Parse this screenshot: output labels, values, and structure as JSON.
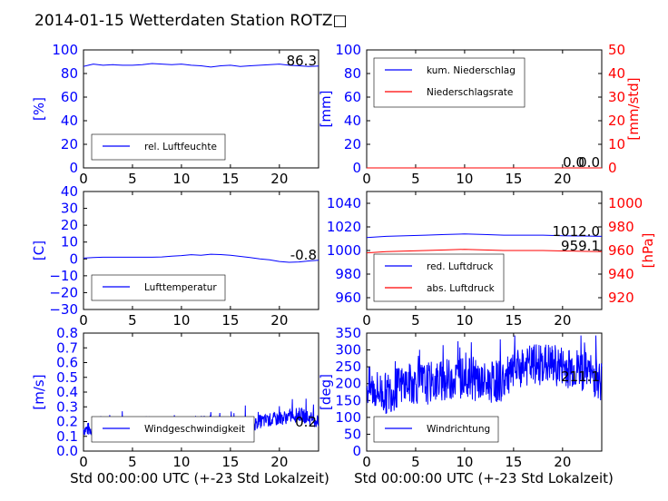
{
  "title": "2014-01-15 Wetterdaten Station ROTZ□",
  "xlabel": "Std 00:00:00 UTC (+-23 Std Lokalzeit)",
  "x_ticks": [
    "0",
    "5",
    "10",
    "15",
    "20"
  ],
  "colors": {
    "primary": "#0000ff",
    "secondary": "#ff0000"
  },
  "chart_data": [
    {
      "type": "line",
      "ylabel": "[%]",
      "ylim": [
        0,
        100
      ],
      "xlim": [
        0,
        24
      ],
      "y_ticks": [
        "0",
        "20",
        "40",
        "60",
        "80",
        "100"
      ],
      "legend": [
        "rel. Luftfeuchte"
      ],
      "legend_position": "lower-left",
      "current_value": "86.3",
      "series": [
        {
          "color": "#0000ff",
          "x": [
            0,
            0.5,
            1,
            2,
            3,
            4,
            5,
            6,
            7,
            8,
            9,
            10,
            11,
            12,
            13,
            14,
            15,
            16,
            17,
            18,
            19,
            20,
            21,
            22,
            23,
            24
          ],
          "y": [
            86,
            87,
            88,
            87,
            87.5,
            87,
            87,
            87.5,
            88.5,
            88,
            87.5,
            88,
            87,
            86.5,
            85.5,
            86.5,
            87,
            86,
            86.5,
            87,
            87.5,
            88,
            87,
            86.5,
            86,
            86.3
          ]
        }
      ]
    },
    {
      "type": "line",
      "ylabel": "[mm]",
      "ylabel_right": "[mm/std]",
      "ylim": [
        0,
        100
      ],
      "ylim_right": [
        0,
        50
      ],
      "xlim": [
        0,
        24
      ],
      "y_ticks": [
        "0",
        "20",
        "40",
        "60",
        "80",
        "100"
      ],
      "y_ticks_right": [
        "0",
        "10",
        "20",
        "30",
        "40",
        "50"
      ],
      "legend": [
        "kum. Niederschlag",
        "Niederschlagsrate"
      ],
      "legend_position": "upper-left",
      "current_value": "0.0",
      "current_value_2": "0.0",
      "series": [
        {
          "color": "#0000ff",
          "x": [
            0,
            24
          ],
          "y": [
            0,
            0
          ]
        },
        {
          "color": "#ff0000",
          "x": [
            0,
            24
          ],
          "y": [
            0,
            0
          ],
          "axis": "right"
        }
      ]
    },
    {
      "type": "line",
      "ylabel": "[C]",
      "ylim": [
        -30,
        40
      ],
      "xlim": [
        0,
        24
      ],
      "y_ticks": [
        "−30",
        "−20",
        "−10",
        "0",
        "10",
        "20",
        "30",
        "40"
      ],
      "legend": [
        "Lufttemperatur"
      ],
      "legend_position": "lower-left",
      "current_value": "-0.8",
      "series": [
        {
          "color": "#0000ff",
          "x": [
            0,
            1,
            2,
            3,
            4,
            5,
            6,
            7,
            8,
            9,
            10,
            11,
            12,
            13,
            14,
            15,
            16,
            17,
            18,
            19,
            20,
            21,
            22,
            23,
            24
          ],
          "y": [
            0.5,
            0.8,
            1,
            1,
            1,
            1,
            1,
            1,
            1.2,
            1.6,
            2,
            2.5,
            2.2,
            2.8,
            2.6,
            2.2,
            1.5,
            0.8,
            0,
            -0.5,
            -1.5,
            -2,
            -1.8,
            -1.2,
            -0.8
          ]
        }
      ]
    },
    {
      "type": "line",
      "ylabel": "[hPa]",
      "ylim": [
        950,
        1050
      ],
      "ylim_right": [
        910,
        1010
      ],
      "xlim": [
        0,
        24
      ],
      "y_ticks": [
        "960",
        "980",
        "1000",
        "1020",
        "1040"
      ],
      "y_ticks_right": [
        "920",
        "940",
        "960",
        "980",
        "1000"
      ],
      "legend": [
        "red. Luftdruck",
        "abs. Luftdruck"
      ],
      "legend_position": "lower-left",
      "current_value": "1012.0",
      "current_value_2": "959.1",
      "series": [
        {
          "color": "#0000ff",
          "x": [
            0,
            2,
            4,
            6,
            8,
            10,
            12,
            14,
            16,
            18,
            20,
            22,
            24
          ],
          "y": [
            1011,
            1012,
            1012.5,
            1013,
            1013.5,
            1014,
            1013.5,
            1013,
            1013,
            1013,
            1012.5,
            1012.3,
            1012
          ]
        },
        {
          "color": "#ff0000",
          "x": [
            0,
            2,
            4,
            6,
            8,
            10,
            12,
            14,
            16,
            18,
            20,
            22,
            24
          ],
          "y": [
            958,
            959,
            959.5,
            960,
            960.5,
            961,
            960.5,
            960,
            960,
            960,
            959.6,
            959.3,
            959.1
          ],
          "axis": "right"
        }
      ]
    },
    {
      "type": "line",
      "ylabel": "[m/s]",
      "ylim": [
        0,
        0.8
      ],
      "xlim": [
        0,
        24
      ],
      "y_ticks": [
        "0.0",
        "0.1",
        "0.2",
        "0.3",
        "0.4",
        "0.5",
        "0.6",
        "0.7",
        "0.8"
      ],
      "legend": [
        "Windgeschwindigkeit"
      ],
      "legend_position": "lower-left",
      "current_value": "0.2",
      "series": [
        {
          "color": "#0000ff",
          "noisy": true,
          "x": [
            0,
            2,
            4,
            6,
            8,
            10,
            12,
            14,
            16,
            18,
            20,
            22,
            24
          ],
          "y": [
            0.15,
            0.14,
            0.15,
            0.15,
            0.15,
            0.17,
            0.2,
            0.18,
            0.15,
            0.2,
            0.22,
            0.25,
            0.2
          ]
        }
      ]
    },
    {
      "type": "line",
      "ylabel": "[deg]",
      "ylim": [
        0,
        350
      ],
      "xlim": [
        0,
        24
      ],
      "y_ticks": [
        "0",
        "50",
        "100",
        "150",
        "200",
        "250",
        "300",
        "350"
      ],
      "legend": [
        "Windrichtung"
      ],
      "legend_position": "lower-left",
      "current_value": "211.1",
      "series": [
        {
          "color": "#0000ff",
          "noisy": true,
          "x": [
            0,
            2,
            4,
            6,
            8,
            10,
            12,
            14,
            16,
            18,
            20,
            22,
            24
          ],
          "y": [
            190,
            170,
            200,
            200,
            210,
            220,
            200,
            210,
            250,
            260,
            250,
            240,
            211
          ]
        }
      ]
    }
  ]
}
